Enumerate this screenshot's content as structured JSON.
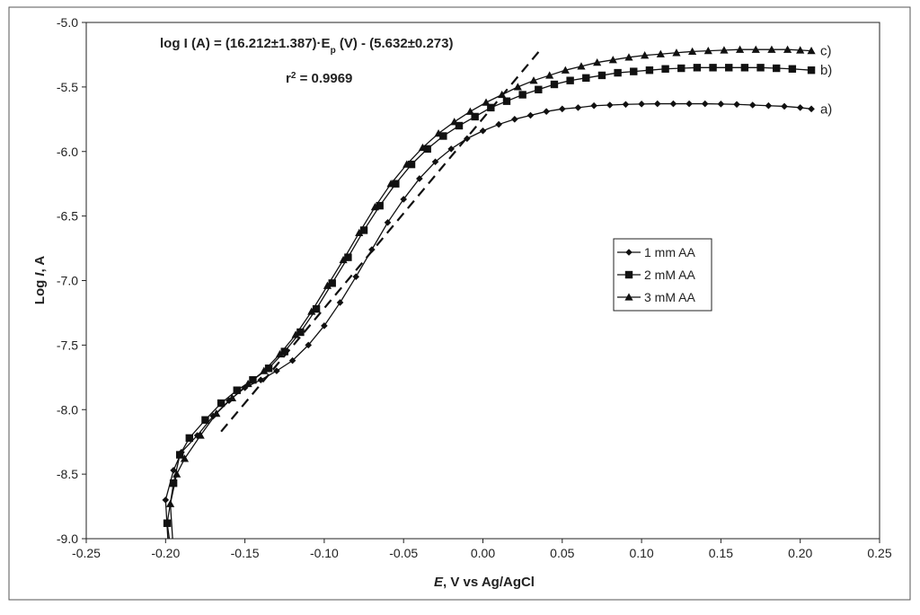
{
  "chart_data": {
    "type": "line",
    "xlabel_italic": "E",
    "xlabel_rest": ", V vs Ag/AgCl",
    "ylabel_prefix": "Log ",
    "ylabel_italic": "I",
    "ylabel_suffix": ", A",
    "xlim": [
      -0.25,
      0.25
    ],
    "ylim": [
      -9.0,
      -5.0
    ],
    "x_ticks": [
      "-0.25",
      "-0.20",
      "-0.15",
      "-0.10",
      "-0.05",
      "0.00",
      "0.05",
      "0.10",
      "0.15",
      "0.20",
      "0.25"
    ],
    "y_ticks": [
      "-5.0",
      "-5.5",
      "-6.0",
      "-6.5",
      "-7.0",
      "-7.5",
      "-8.0",
      "-8.5",
      "-9.0"
    ],
    "grid": false,
    "legend_position": "center-right",
    "annotations": {
      "equation_part1": "log I (A) = (16.212±1.387)·E",
      "equation_sub": "p",
      "equation_part2": " (V) - (5.632±0.273)",
      "r2_prefix": "r",
      "r2_sup": "2",
      "r2_rest": " = 0.9969"
    },
    "fit_line": {
      "x": [
        -0.165,
        0.037
      ],
      "y": [
        -8.17,
        -5.2
      ]
    },
    "series": [
      {
        "name": "1 mm AA",
        "curve_label": "a)",
        "marker": "diamond",
        "x": [
          -0.2,
          -0.195,
          -0.19,
          -0.18,
          -0.17,
          -0.16,
          -0.15,
          -0.14,
          -0.13,
          -0.12,
          -0.11,
          -0.1,
          -0.09,
          -0.08,
          -0.07,
          -0.06,
          -0.05,
          -0.04,
          -0.03,
          -0.02,
          -0.01,
          0.0,
          0.01,
          0.02,
          0.03,
          0.04,
          0.05,
          0.06,
          0.07,
          0.08,
          0.09,
          0.1,
          0.11,
          0.12,
          0.13,
          0.14,
          0.15,
          0.16,
          0.17,
          0.18,
          0.19,
          0.2,
          0.207
        ],
        "y": [
          -8.7,
          -8.47,
          -8.33,
          -8.2,
          -8.05,
          -7.93,
          -7.83,
          -7.77,
          -7.7,
          -7.62,
          -7.5,
          -7.35,
          -7.17,
          -6.97,
          -6.76,
          -6.55,
          -6.37,
          -6.21,
          -6.08,
          -5.98,
          -5.9,
          -5.84,
          -5.79,
          -5.75,
          -5.72,
          -5.69,
          -5.67,
          -5.66,
          -5.645,
          -5.64,
          -5.635,
          -5.632,
          -5.63,
          -5.63,
          -5.63,
          -5.63,
          -5.632,
          -5.635,
          -5.64,
          -5.645,
          -5.65,
          -5.66,
          -5.67
        ]
      },
      {
        "name": "2 mM AA",
        "curve_label": "b)",
        "marker": "square",
        "x": [
          -0.199,
          -0.195,
          -0.191,
          -0.185,
          -0.175,
          -0.165,
          -0.155,
          -0.145,
          -0.135,
          -0.125,
          -0.115,
          -0.105,
          -0.095,
          -0.085,
          -0.075,
          -0.065,
          -0.055,
          -0.045,
          -0.035,
          -0.025,
          -0.015,
          -0.005,
          0.005,
          0.015,
          0.025,
          0.035,
          0.045,
          0.055,
          0.065,
          0.075,
          0.085,
          0.095,
          0.105,
          0.115,
          0.125,
          0.135,
          0.145,
          0.155,
          0.165,
          0.175,
          0.185,
          0.195,
          0.207
        ],
        "y": [
          -8.88,
          -8.57,
          -8.35,
          -8.22,
          -8.08,
          -7.95,
          -7.85,
          -7.77,
          -7.68,
          -7.55,
          -7.4,
          -7.22,
          -7.02,
          -6.82,
          -6.61,
          -6.42,
          -6.25,
          -6.1,
          -5.98,
          -5.88,
          -5.8,
          -5.73,
          -5.66,
          -5.61,
          -5.56,
          -5.52,
          -5.48,
          -5.45,
          -5.43,
          -5.41,
          -5.39,
          -5.38,
          -5.37,
          -5.36,
          -5.355,
          -5.35,
          -5.35,
          -5.35,
          -5.35,
          -5.35,
          -5.355,
          -5.36,
          -5.37
        ]
      },
      {
        "name": "3 mM AA",
        "curve_label": "c)",
        "marker": "triangle",
        "x": [
          -0.197,
          -0.193,
          -0.188,
          -0.178,
          -0.168,
          -0.158,
          -0.148,
          -0.138,
          -0.128,
          -0.118,
          -0.108,
          -0.098,
          -0.088,
          -0.078,
          -0.068,
          -0.058,
          -0.048,
          -0.038,
          -0.028,
          -0.018,
          -0.008,
          0.002,
          0.012,
          0.022,
          0.032,
          0.042,
          0.052,
          0.062,
          0.072,
          0.082,
          0.092,
          0.102,
          0.112,
          0.122,
          0.132,
          0.142,
          0.152,
          0.162,
          0.172,
          0.182,
          0.192,
          0.2,
          0.207
        ],
        "y": [
          -8.73,
          -8.5,
          -8.38,
          -8.2,
          -8.03,
          -7.91,
          -7.8,
          -7.7,
          -7.57,
          -7.42,
          -7.24,
          -7.04,
          -6.84,
          -6.63,
          -6.43,
          -6.25,
          -6.1,
          -5.97,
          -5.86,
          -5.77,
          -5.69,
          -5.62,
          -5.56,
          -5.5,
          -5.45,
          -5.41,
          -5.37,
          -5.34,
          -5.31,
          -5.29,
          -5.27,
          -5.255,
          -5.245,
          -5.235,
          -5.225,
          -5.22,
          -5.215,
          -5.21,
          -5.21,
          -5.21,
          -5.21,
          -5.215,
          -5.22
        ]
      }
    ]
  }
}
